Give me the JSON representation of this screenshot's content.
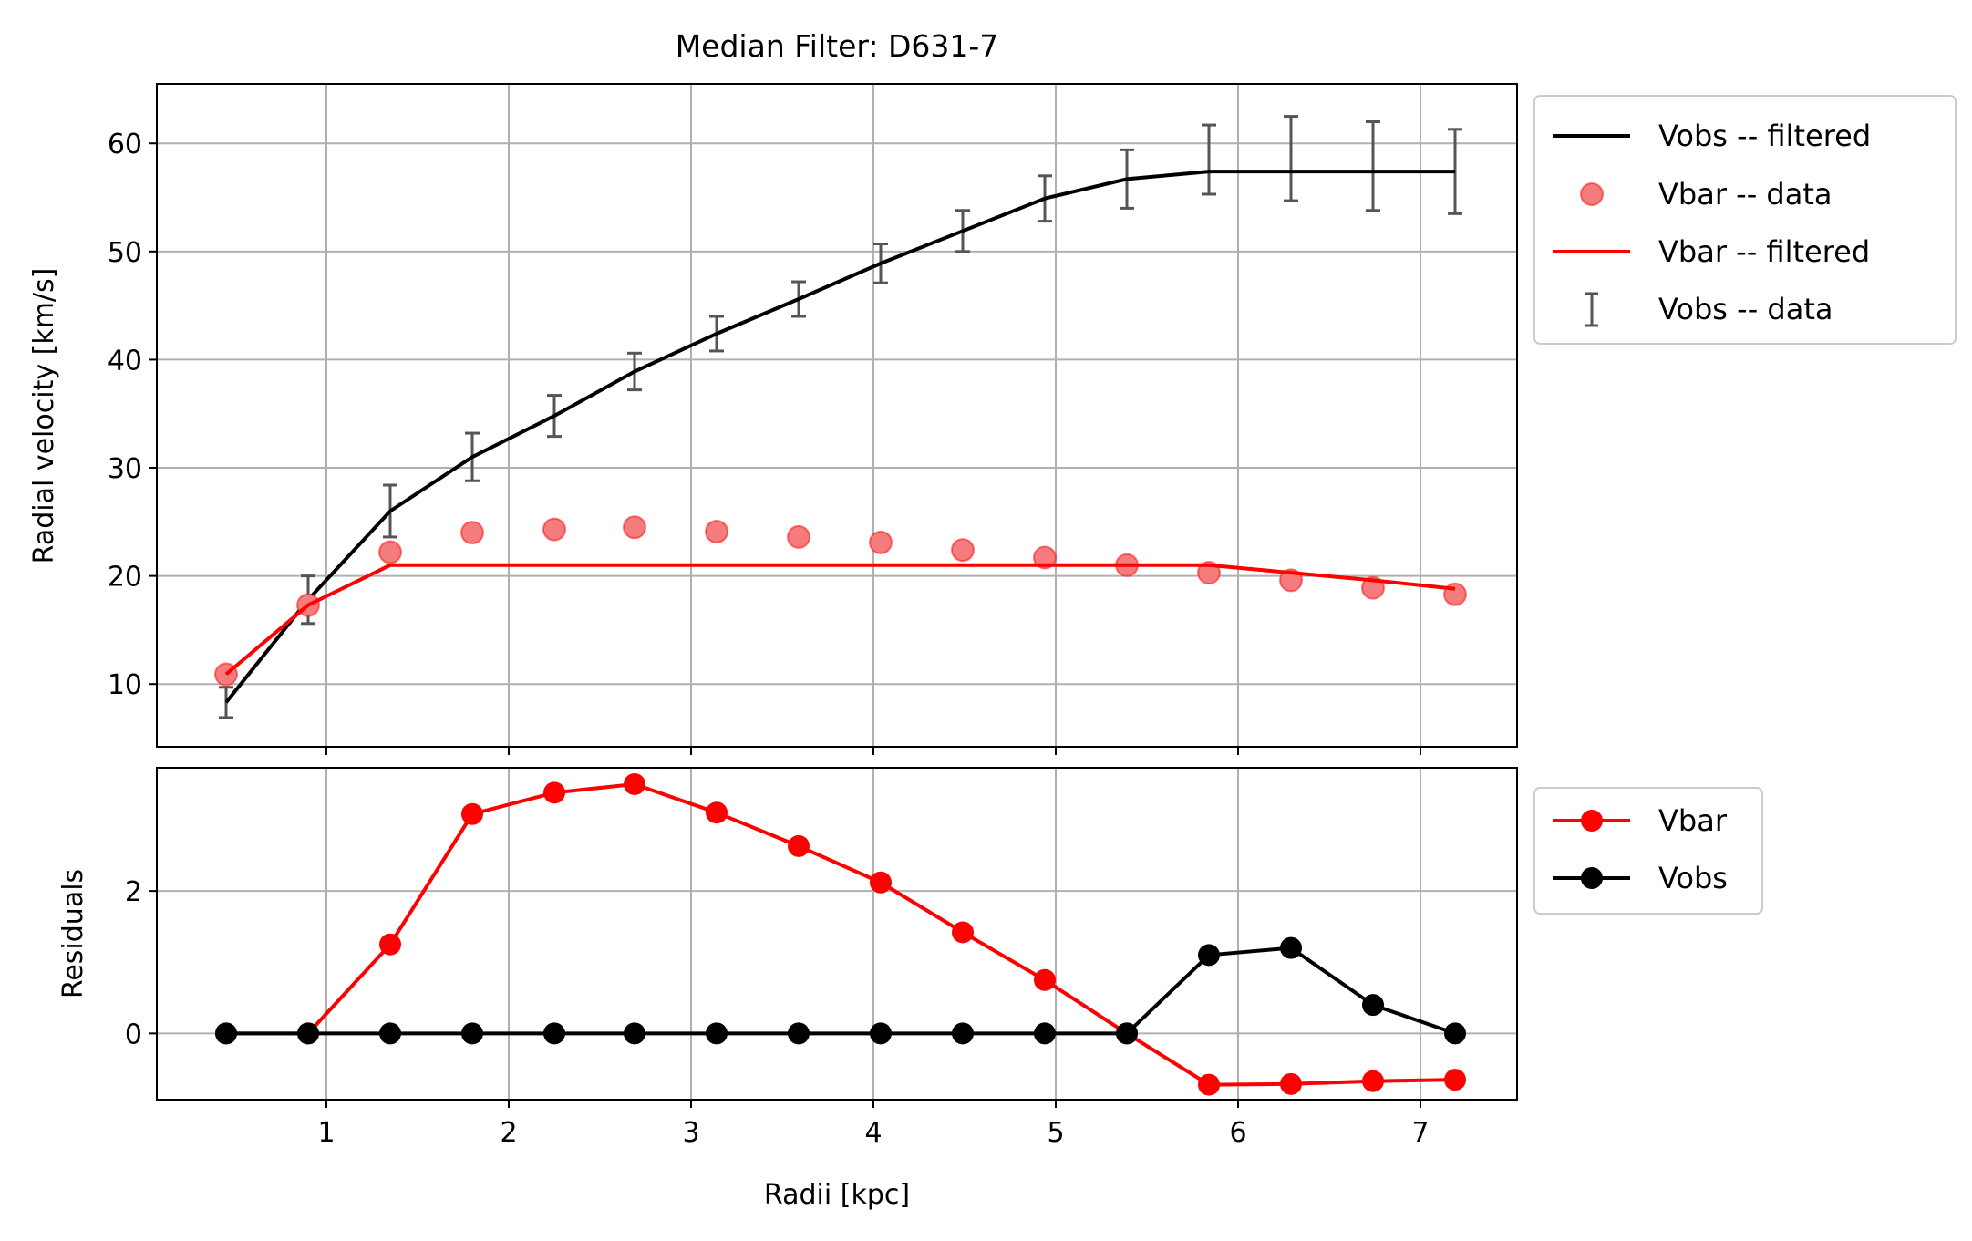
{
  "figure_title": "Median Filter: D631-7",
  "x_ticks": [
    1,
    2,
    3,
    4,
    5,
    6,
    7
  ],
  "colors": {
    "obs": "#000000",
    "bar": "#ff0000",
    "err": "#555555",
    "grid": "#b0b0b0",
    "dot": "#f47c7c"
  },
  "chart_data": [
    {
      "type": "line",
      "title": "Median Filter: D631-7",
      "xlabel": "",
      "ylabel": "Radial velocity [km/s]",
      "xlim": [
        0.07,
        7.53
      ],
      "ylim": [
        4.2,
        65.5
      ],
      "y_ticks": [
        10,
        20,
        30,
        40,
        50,
        60
      ],
      "grid": true,
      "legend_position": "outside-right",
      "x": [
        0.45,
        0.9,
        1.35,
        1.8,
        2.25,
        2.69,
        3.14,
        3.59,
        4.04,
        4.49,
        4.94,
        5.39,
        5.84,
        6.29,
        6.74,
        7.19
      ],
      "series": [
        {
          "name": "Vobs -- filtered",
          "kind": "line",
          "values": [
            8.3,
            17.8,
            26.0,
            31.0,
            34.8,
            38.9,
            42.4,
            45.6,
            48.9,
            51.9,
            54.9,
            56.7,
            57.4,
            57.4,
            57.4,
            57.4
          ]
        },
        {
          "name": "Vbar -- data",
          "kind": "scatter",
          "values": [
            10.9,
            17.3,
            22.2,
            24.0,
            24.3,
            24.5,
            24.1,
            23.6,
            23.1,
            22.4,
            21.7,
            21.0,
            20.3,
            19.6,
            18.9,
            18.3
          ]
        },
        {
          "name": "Vbar -- filtered",
          "kind": "line",
          "values": [
            10.9,
            17.3,
            21.0,
            21.0,
            21.0,
            21.0,
            21.0,
            21.0,
            21.0,
            21.0,
            21.0,
            21.0,
            21.0,
            20.3,
            19.6,
            18.8
          ]
        },
        {
          "name": "Vobs -- data",
          "kind": "errorbar",
          "values": [
            8.3,
            17.8,
            26.0,
            31.0,
            34.8,
            38.9,
            42.4,
            45.6,
            48.9,
            51.9,
            54.9,
            56.7,
            58.5,
            58.6,
            57.9,
            57.4
          ],
          "errors": [
            1.4,
            2.2,
            2.4,
            2.2,
            1.9,
            1.7,
            1.6,
            1.6,
            1.8,
            1.9,
            2.1,
            2.7,
            3.2,
            3.9,
            4.1,
            3.9
          ]
        }
      ]
    },
    {
      "type": "line",
      "title": "",
      "xlabel": "Radii [kpc]",
      "ylabel": "Residuals",
      "xlim": [
        0.07,
        7.53
      ],
      "ylim": [
        -0.93,
        3.73
      ],
      "y_ticks": [
        0,
        2
      ],
      "grid": true,
      "legend_position": "outside-right",
      "x": [
        0.45,
        0.9,
        1.35,
        1.8,
        2.25,
        2.69,
        3.14,
        3.59,
        4.04,
        4.49,
        4.94,
        5.39,
        5.84,
        6.29,
        6.74,
        7.19
      ],
      "series": [
        {
          "name": "Vbar",
          "kind": "line-marker",
          "values": [
            0.0,
            0.0,
            1.25,
            3.08,
            3.38,
            3.5,
            3.1,
            2.63,
            2.12,
            1.42,
            0.75,
            0.0,
            -0.72,
            -0.71,
            -0.67,
            -0.65
          ]
        },
        {
          "name": "Vobs",
          "kind": "line-marker",
          "values": [
            0,
            0,
            0,
            0,
            0,
            0,
            0,
            0,
            0,
            0,
            0,
            0,
            1.1,
            1.2,
            0.4,
            0.0
          ]
        }
      ]
    }
  ]
}
